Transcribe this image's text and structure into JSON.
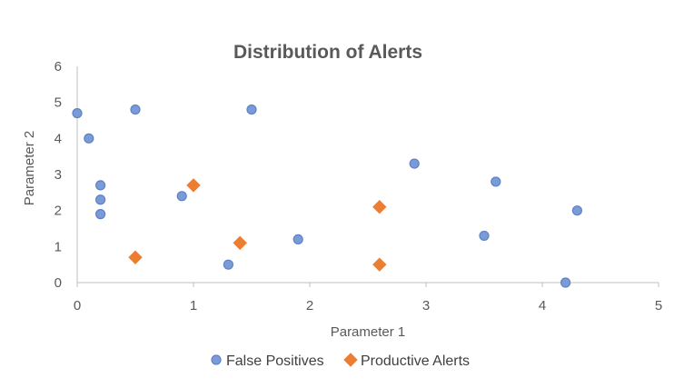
{
  "chart_data": {
    "type": "scatter",
    "title": "Distribution of Alerts",
    "xlabel": "Parameter 1",
    "ylabel": "Parameter 2",
    "xlim": [
      0,
      5
    ],
    "ylim": [
      0,
      6
    ],
    "xticks": [
      "0",
      "1",
      "2",
      "3",
      "4",
      "5"
    ],
    "yticks": [
      "0",
      "1",
      "2",
      "3",
      "4",
      "5",
      "6"
    ],
    "grid": false,
    "legend_position": "bottom",
    "series": [
      {
        "name": "False Positives",
        "marker": "circle",
        "color": "#4472C4",
        "points": [
          [
            0,
            4.7
          ],
          [
            0.1,
            4.0
          ],
          [
            0.5,
            4.8
          ],
          [
            1.5,
            4.8
          ],
          [
            0.2,
            2.7
          ],
          [
            0.2,
            2.3
          ],
          [
            0.2,
            1.9
          ],
          [
            0.9,
            2.4
          ],
          [
            1.3,
            0.5
          ],
          [
            1.9,
            1.2
          ],
          [
            2.9,
            3.3
          ],
          [
            3.6,
            2.8
          ],
          [
            3.5,
            1.3
          ],
          [
            4.3,
            2.0
          ],
          [
            4.2,
            0.0
          ]
        ]
      },
      {
        "name": "Productive Alerts",
        "marker": "diamond",
        "color": "#ED7D31",
        "points": [
          [
            1.0,
            2.7
          ],
          [
            0.5,
            0.7
          ],
          [
            1.4,
            1.1
          ],
          [
            2.6,
            2.1
          ],
          [
            2.6,
            0.5
          ]
        ]
      }
    ]
  }
}
